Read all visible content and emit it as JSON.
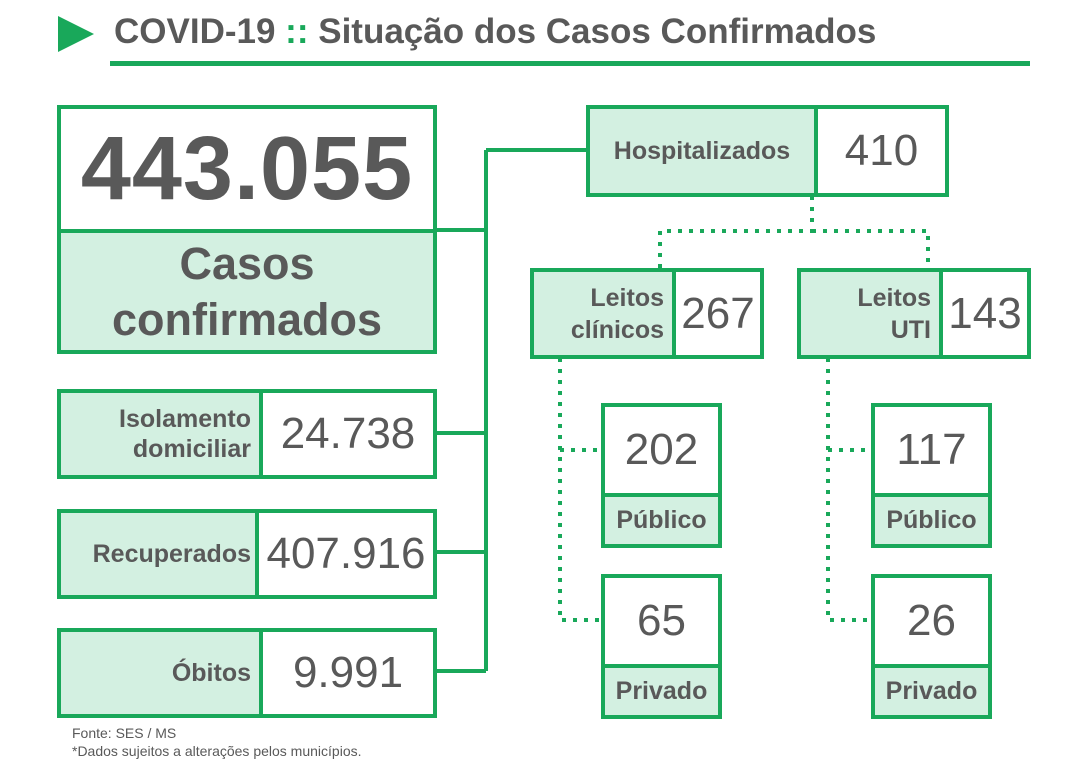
{
  "header": {
    "title_part1": "COVID-19",
    "separator": "::",
    "title_part2": "Situação dos Casos Confirmados"
  },
  "totals": {
    "confirmed_value": "443.055",
    "confirmed_label_line1": "Casos",
    "confirmed_label_line2": "confirmados"
  },
  "status": [
    {
      "label_line1": "Isolamento",
      "label_line2": "domiciliar",
      "value": "24.738"
    },
    {
      "label_line1": "Recuperados",
      "label_line2": "",
      "value": "407.916"
    },
    {
      "label_line1": "Óbitos",
      "label_line2": "",
      "value": "9.991"
    }
  ],
  "hospitalized": {
    "label": "Hospitalizados",
    "value": "410"
  },
  "beds": [
    {
      "label_line1": "Leitos",
      "label_line2": "clínicos",
      "value": "267",
      "public": {
        "value": "202",
        "label": "Público"
      },
      "private": {
        "value": "65",
        "label": "Privado"
      }
    },
    {
      "label_line1": "Leitos",
      "label_line2": "UTI",
      "value": "143",
      "public": {
        "value": "117",
        "label": "Público"
      },
      "private": {
        "value": "26",
        "label": "Privado"
      }
    }
  ],
  "footer": {
    "source": "Fonte: SES / MS",
    "note": "*Dados sujeitos a alterações pelos municípios."
  },
  "colors": {
    "accent": "#19a85a",
    "label_fill": "#d3f0e1",
    "text": "#595959"
  }
}
